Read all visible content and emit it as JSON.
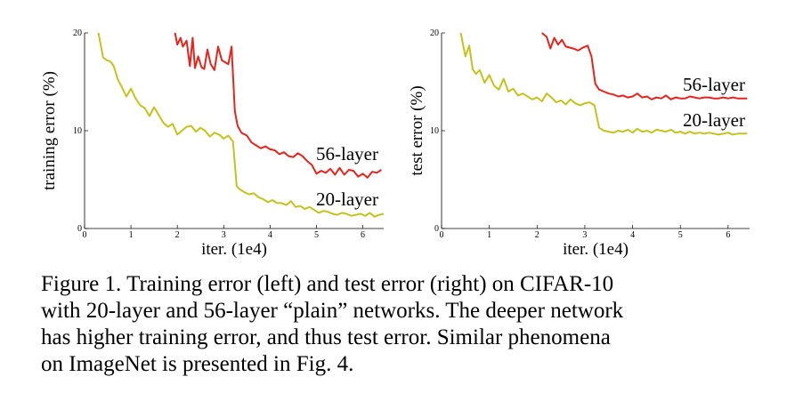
{
  "chart_data": [
    {
      "type": "line",
      "title": "",
      "xlabel": "iter. (1e4)",
      "ylabel": "training error (%)",
      "xlim": [
        0,
        6.45
      ],
      "ylim": [
        0,
        20
      ],
      "xticks": [
        "0",
        "1",
        "2",
        "3",
        "4",
        "5",
        "6"
      ],
      "yticks": [
        "0",
        "10",
        "20"
      ],
      "grid": false,
      "legend": "inline labels at line ends",
      "series": [
        {
          "name": "56-layer",
          "color": "#e8231c",
          "x": [
            1.95,
            2.0,
            2.07,
            2.12,
            2.2,
            2.27,
            2.33,
            2.38,
            2.45,
            2.52,
            2.58,
            2.65,
            2.72,
            2.8,
            2.88,
            2.96,
            3.03,
            3.1,
            3.17,
            3.24,
            3.3,
            3.38,
            3.5,
            3.6,
            3.7,
            3.8,
            3.9,
            4.0,
            4.1,
            4.2,
            4.3,
            4.4,
            4.5,
            4.6,
            4.7,
            4.8,
            4.9,
            5.0,
            5.1,
            5.2,
            5.3,
            5.4,
            5.5,
            5.6,
            5.7,
            5.8,
            5.9,
            6.0,
            6.1,
            6.2,
            6.3,
            6.4
          ],
          "values": [
            20.0,
            18.8,
            19.5,
            18.6,
            19.2,
            16.6,
            19.5,
            16.4,
            17.6,
            16.5,
            16.3,
            18.3,
            16.8,
            16.2,
            18.6,
            17.2,
            17.0,
            16.8,
            18.6,
            12.0,
            10.5,
            9.8,
            9.5,
            8.8,
            8.5,
            8.2,
            8.4,
            8.1,
            8.0,
            7.6,
            7.8,
            7.4,
            7.3,
            7.7,
            7.4,
            6.9,
            6.5,
            5.6,
            5.9,
            5.7,
            6.1,
            5.5,
            6.2,
            5.5,
            6.0,
            5.9,
            5.3,
            5.6,
            5.2,
            5.8,
            5.7,
            6.0
          ]
        },
        {
          "name": "20-layer",
          "color": "#c3c31a",
          "x": [
            0.3,
            0.4,
            0.48,
            0.55,
            0.63,
            0.72,
            0.8,
            0.9,
            1.0,
            1.1,
            1.2,
            1.3,
            1.4,
            1.5,
            1.6,
            1.7,
            1.8,
            1.9,
            2.0,
            2.1,
            2.2,
            2.3,
            2.4,
            2.5,
            2.6,
            2.7,
            2.8,
            2.9,
            3.0,
            3.1,
            3.2,
            3.28,
            3.35,
            3.45,
            3.55,
            3.65,
            3.75,
            3.85,
            3.95,
            4.05,
            4.15,
            4.25,
            4.35,
            4.45,
            4.55,
            4.65,
            4.75,
            4.85,
            4.95,
            5.05,
            5.15,
            5.25,
            5.35,
            5.45,
            5.55,
            5.65,
            5.75,
            5.85,
            5.95,
            6.05,
            6.15,
            6.25,
            6.35,
            6.45
          ],
          "values": [
            20.0,
            17.5,
            17.2,
            17.1,
            16.6,
            15.2,
            14.5,
            13.5,
            14.3,
            13.3,
            12.6,
            12.3,
            11.5,
            12.4,
            11.6,
            10.8,
            10.4,
            10.7,
            9.6,
            10.0,
            10.4,
            10.5,
            9.9,
            10.3,
            10.0,
            9.4,
            9.8,
            9.6,
            9.2,
            9.5,
            8.9,
            4.3,
            4.0,
            3.7,
            3.5,
            3.6,
            3.2,
            3.0,
            2.7,
            2.9,
            2.6,
            2.6,
            2.4,
            2.8,
            2.2,
            2.3,
            2.0,
            2.2,
            1.9,
            1.6,
            1.8,
            1.7,
            1.5,
            1.4,
            1.6,
            1.5,
            1.3,
            1.4,
            1.5,
            1.3,
            1.6,
            1.2,
            1.4,
            1.5
          ]
        }
      ],
      "series_labels": [
        "56-layer",
        "20-layer"
      ]
    },
    {
      "type": "line",
      "title": "",
      "xlabel": "iter. (1e4)",
      "ylabel": "test error (%)",
      "xlim": [
        0,
        6.45
      ],
      "ylim": [
        0,
        20
      ],
      "xticks": [
        "0",
        "1",
        "2",
        "3",
        "4",
        "5",
        "6"
      ],
      "yticks": [
        "0",
        "10",
        "20"
      ],
      "grid": false,
      "legend": "inline labels at line ends",
      "series": [
        {
          "name": "56-layer",
          "color": "#e8231c",
          "x": [
            2.1,
            2.2,
            2.28,
            2.36,
            2.44,
            2.52,
            2.6,
            2.68,
            2.76,
            2.86,
            2.96,
            3.06,
            3.14,
            3.22,
            3.3,
            3.4,
            3.5,
            3.6,
            3.7,
            3.8,
            3.9,
            4.0,
            4.1,
            4.2,
            4.3,
            4.4,
            4.5,
            4.6,
            4.7,
            4.8,
            4.9,
            5.0,
            5.1,
            5.2,
            5.3,
            5.4,
            5.5,
            5.6,
            5.7,
            5.8,
            5.9,
            6.0,
            6.1,
            6.2,
            6.3,
            6.4
          ],
          "values": [
            20.0,
            19.6,
            18.4,
            19.5,
            18.8,
            19.3,
            18.6,
            18.5,
            18.4,
            18.2,
            18.5,
            18.7,
            17.6,
            14.8,
            14.2,
            14.0,
            13.8,
            13.7,
            13.5,
            13.6,
            13.4,
            13.5,
            13.8,
            13.4,
            13.5,
            13.2,
            13.4,
            13.3,
            13.6,
            13.2,
            13.4,
            13.3,
            13.3,
            13.5,
            13.4,
            13.3,
            13.4,
            13.4,
            13.3,
            13.3,
            13.4,
            13.3,
            13.4,
            13.3,
            13.3,
            13.3
          ]
        },
        {
          "name": "20-layer",
          "color": "#c3c31a",
          "x": [
            0.4,
            0.5,
            0.58,
            0.65,
            0.72,
            0.8,
            0.9,
            1.0,
            1.1,
            1.2,
            1.3,
            1.4,
            1.5,
            1.6,
            1.7,
            1.8,
            1.9,
            2.0,
            2.1,
            2.2,
            2.3,
            2.4,
            2.5,
            2.6,
            2.7,
            2.8,
            2.9,
            3.0,
            3.1,
            3.2,
            3.3,
            3.4,
            3.5,
            3.6,
            3.7,
            3.8,
            3.9,
            4.0,
            4.1,
            4.2,
            4.3,
            4.4,
            4.5,
            4.6,
            4.7,
            4.8,
            4.9,
            5.0,
            5.1,
            5.2,
            5.3,
            5.4,
            5.5,
            5.6,
            5.7,
            5.8,
            5.9,
            6.0,
            6.1,
            6.2,
            6.3,
            6.4
          ],
          "values": [
            20.0,
            17.6,
            18.7,
            16.3,
            15.8,
            16.2,
            14.9,
            15.7,
            14.6,
            14.2,
            15.3,
            14.0,
            14.3,
            13.6,
            13.8,
            13.5,
            13.2,
            13.4,
            13.0,
            13.8,
            13.4,
            12.9,
            13.1,
            12.7,
            13.2,
            12.8,
            12.6,
            12.8,
            12.9,
            12.6,
            10.3,
            10.0,
            9.9,
            9.8,
            10.0,
            9.9,
            10.1,
            9.8,
            10.2,
            9.9,
            10.0,
            9.8,
            10.1,
            10.0,
            9.9,
            10.1,
            9.8,
            9.9,
            9.7,
            9.9,
            9.7,
            9.8,
            9.7,
            9.8,
            9.7,
            9.6,
            9.7,
            9.8,
            9.6,
            9.7,
            9.7,
            9.7
          ]
        }
      ],
      "series_labels": [
        "56-layer",
        "20-layer"
      ]
    }
  ],
  "caption": {
    "lines": [
      "Figure 1. Training error (left) and test error (right) on CIFAR-10",
      "with 20-layer and 56-layer “plain” networks. The deeper network",
      "has higher training error, and thus test error.  Similar phenomena",
      "on ImageNet is presented in Fig. 4."
    ]
  }
}
